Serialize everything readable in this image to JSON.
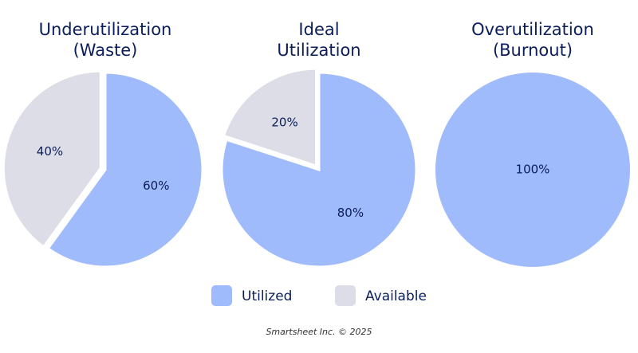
{
  "chart_data": [
    {
      "type": "pie",
      "title": [
        "Underutilization",
        "(Waste)"
      ],
      "categories": [
        "Utilized",
        "Available"
      ],
      "values": [
        60,
        40
      ],
      "value_labels": [
        "60%",
        "40%"
      ],
      "colors": [
        "#a0bbfb",
        "#dcdde6"
      ]
    },
    {
      "type": "pie",
      "title": [
        "Ideal",
        "Utilization"
      ],
      "categories": [
        "Utilized",
        "Available"
      ],
      "values": [
        80,
        20
      ],
      "value_labels": [
        "80%",
        "20%"
      ],
      "colors": [
        "#a0bbfb",
        "#dcdde6"
      ]
    },
    {
      "type": "pie",
      "title": [
        "Overutilization",
        "(Burnout)"
      ],
      "categories": [
        "Utilized"
      ],
      "values": [
        100
      ],
      "value_labels": [
        "100%"
      ],
      "colors": [
        "#a0bbfb"
      ]
    }
  ],
  "legend": [
    {
      "name": "Utilized",
      "color": "#a0bbfb"
    },
    {
      "name": "Available",
      "color": "#dcdde6"
    }
  ],
  "footer": "Smartsheet Inc. © 2025"
}
